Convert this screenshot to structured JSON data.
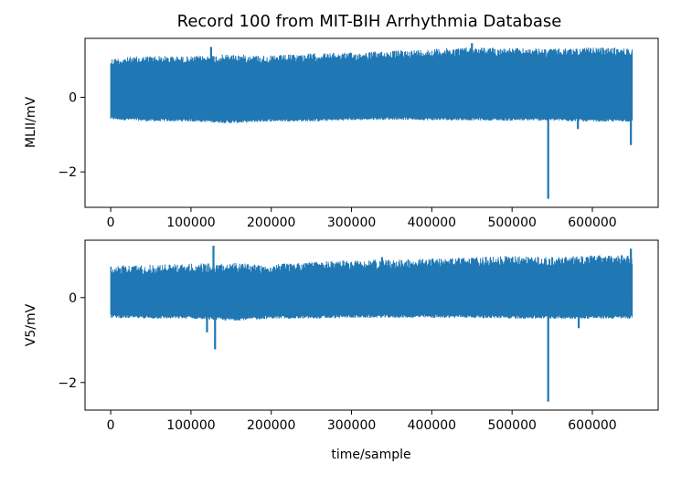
{
  "figure": {
    "title": "Record 100 from MIT-BIH Arrhythmia Database",
    "background": "#ffffff",
    "line_color": "#1f77b4"
  },
  "chart_data": {
    "type": "line",
    "title": "Record 100 from MIT-BIH Arrhythmia Database",
    "shared_x": {
      "label": "time/sample",
      "ticks": [
        0,
        100000,
        200000,
        300000,
        400000,
        500000,
        600000
      ],
      "tick_labels": [
        "0",
        "100000",
        "200000",
        "300000",
        "400000",
        "500000",
        "600000"
      ],
      "xlim": [
        -32000,
        682000
      ],
      "data_range": [
        0,
        650000
      ]
    },
    "panels": [
      {
        "ylabel": "MLII/mV",
        "ylim": [
          -2.95,
          1.58
        ],
        "yticks": [
          -2,
          0
        ],
        "ytick_labels": [
          "−2",
          "0"
        ],
        "envelope": {
          "x": [
            0,
            50000,
            100000,
            150000,
            200000,
            250000,
            300000,
            350000,
            400000,
            450000,
            500000,
            550000,
            600000,
            650000
          ],
          "upper": [
            1.05,
            1.12,
            1.1,
            1.16,
            1.12,
            1.18,
            1.2,
            1.25,
            1.3,
            1.35,
            1.32,
            1.3,
            1.34,
            1.32
          ],
          "lower": [
            -0.6,
            -0.65,
            -0.65,
            -0.7,
            -0.65,
            -0.65,
            -0.62,
            -0.6,
            -0.62,
            -0.62,
            -0.63,
            -0.63,
            -0.66,
            -0.65
          ]
        },
        "spikes": [
          {
            "x": 125000,
            "y": 1.35
          },
          {
            "x": 450000,
            "y": 1.45
          },
          {
            "x": 545000,
            "y": -2.72
          },
          {
            "x": 582000,
            "y": -0.85
          },
          {
            "x": 648000,
            "y": -1.28
          }
        ]
      },
      {
        "ylabel": "V5/mV",
        "ylim": [
          -2.65,
          1.35
        ],
        "yticks": [
          -2,
          0
        ],
        "ytick_labels": [
          "−2",
          "0"
        ],
        "envelope": {
          "x": [
            0,
            50000,
            100000,
            150000,
            200000,
            250000,
            300000,
            350000,
            400000,
            450000,
            500000,
            550000,
            600000,
            650000
          ],
          "upper": [
            0.75,
            0.78,
            0.8,
            0.82,
            0.78,
            0.85,
            0.88,
            0.9,
            0.92,
            0.95,
            0.98,
            0.95,
            1.0,
            1.0
          ],
          "lower": [
            -0.48,
            -0.5,
            -0.5,
            -0.55,
            -0.5,
            -0.5,
            -0.48,
            -0.48,
            -0.48,
            -0.48,
            -0.5,
            -0.5,
            -0.5,
            -0.5
          ]
        },
        "spikes": [
          {
            "x": 128000,
            "y": 1.22
          },
          {
            "x": 130000,
            "y": -1.22
          },
          {
            "x": 120000,
            "y": -0.82
          },
          {
            "x": 338000,
            "y": 0.95
          },
          {
            "x": 545000,
            "y": -2.45
          },
          {
            "x": 583000,
            "y": -0.72
          },
          {
            "x": 648000,
            "y": 1.15
          }
        ]
      }
    ]
  }
}
